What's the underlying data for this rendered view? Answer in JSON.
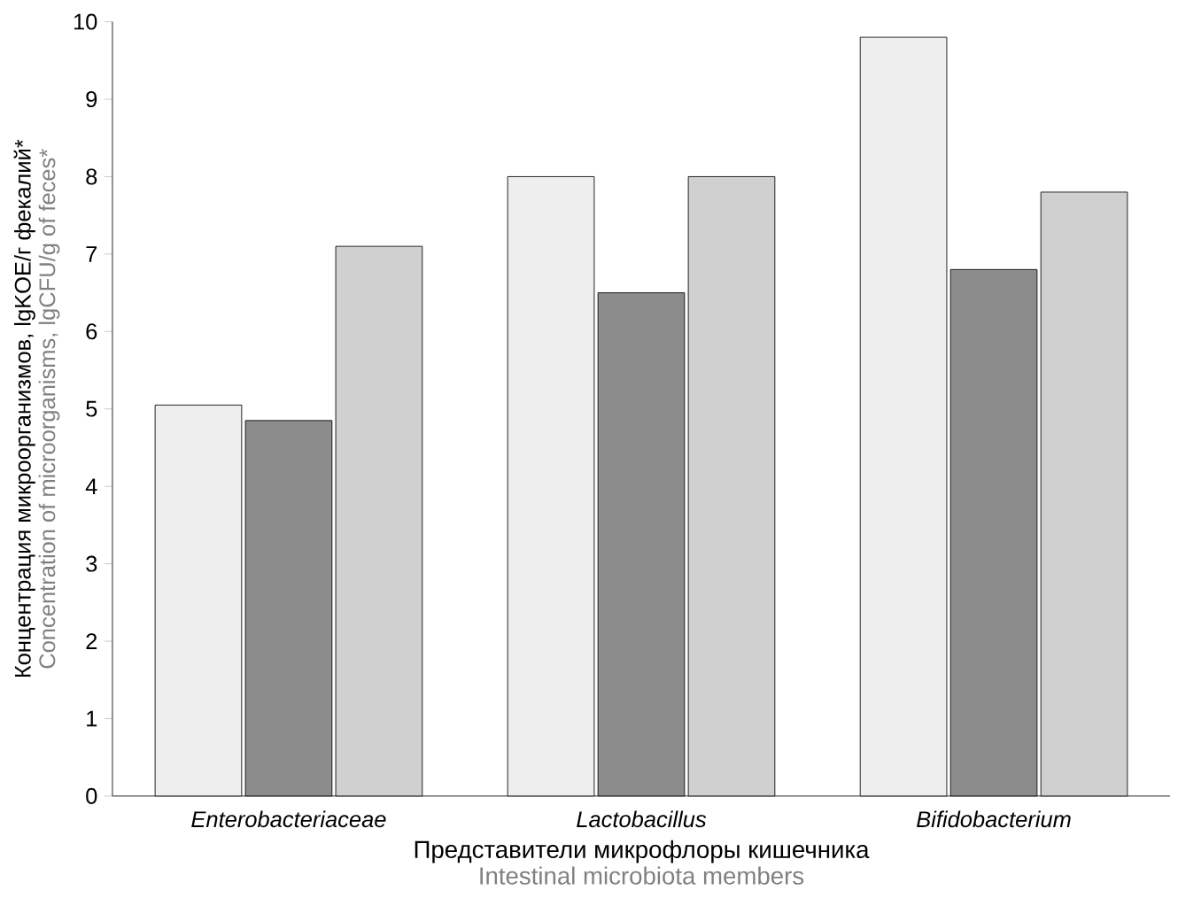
{
  "chart_data": {
    "type": "bar",
    "ylabel": "Концентрация микроорганизмов, lgKOE/г фекалий*",
    "xlabel": "Представители микрофлоры кишечника",
    "annotations": [
      "Concentration of microorganisms, lgCFU/g of feces*",
      "Intestinal microbiota members"
    ],
    "categories": [
      "Enterobacteriaceae",
      "Lactobacillus",
      "Bifidobacterium"
    ],
    "series": [
      {
        "color": "#eeeeee",
        "values": [
          5.05,
          8.0,
          9.8
        ]
      },
      {
        "color": "#8c8c8c",
        "values": [
          4.85,
          6.5,
          6.8
        ]
      },
      {
        "color": "#d0d0d0",
        "values": [
          7.1,
          8.0,
          7.8
        ]
      }
    ],
    "ylim": [
      0,
      10
    ],
    "yticks": [
      0,
      1,
      2,
      3,
      4,
      5,
      6,
      7,
      8,
      9,
      10
    ]
  }
}
